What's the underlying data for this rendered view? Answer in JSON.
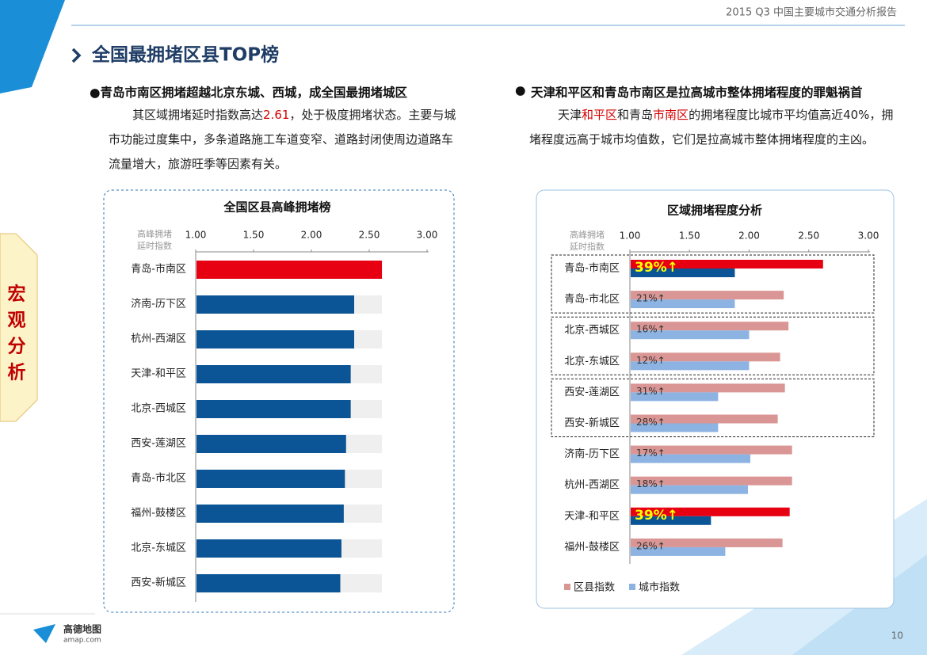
{
  "header": {
    "report_title": "2015 Q3 中国主要城市交通分析报告",
    "page_number": "10"
  },
  "section_title": "全国最拥堵区县TOP榜",
  "side_tab": [
    "宏",
    "观",
    "分",
    "析"
  ],
  "logo": {
    "name": "高德地图",
    "site": "amap.com"
  },
  "left_text": {
    "heading": "●青岛市南区拥堵超越北京东城、西城，成全国最拥堵城区",
    "paragraph": [
      {
        "text": "其区域拥堵延时指数高达"
      },
      {
        "text": "2.61",
        "emphasis": true
      },
      {
        "text": "，处于极度拥堵状态。主要与城市功能过度集中，多条道路施工车道变窄、道路封闭使周边道路车流量增大，旅游旺季等因素有关。"
      }
    ]
  },
  "right_text": {
    "bullet": "●",
    "heading": "天津和平区和青岛市南区是拉高城市整体拥堵程度的罪魁祸首",
    "paragraph": [
      {
        "text": "天津"
      },
      {
        "text": "和平区",
        "emphasis": true
      },
      {
        "text": "和青岛"
      },
      {
        "text": "市南区",
        "emphasis": true
      },
      {
        "text": "的拥堵程度比城市平均值高近40%，拥堵程度远高于城市均值数，它们是拉高城市整体拥堵程度的主凶。"
      }
    ]
  },
  "chart_data": [
    {
      "type": "bar",
      "orientation": "horizontal",
      "title": "全国区县高峰拥堵榜",
      "axis_label": [
        "高峰拥堵",
        "延时指数"
      ],
      "categories": [
        "青岛-市南区",
        "济南-历下区",
        "杭州-西湖区",
        "天津-和平区",
        "北京-西城区",
        "西安-莲湖区",
        "青岛-市北区",
        "福州-鼓楼区",
        "北京-东城区",
        "西安-新城区"
      ],
      "values": [
        2.61,
        2.37,
        2.37,
        2.34,
        2.34,
        2.3,
        2.29,
        2.28,
        2.26,
        2.25
      ],
      "colors": [
        "#e60012",
        "#0b5596",
        "#0b5596",
        "#0b5596",
        "#0b5596",
        "#0b5596",
        "#0b5596",
        "#0b5596",
        "#0b5596",
        "#0b5596"
      ],
      "track_color": "#efefef",
      "xlim": [
        1,
        3
      ],
      "xticks": [
        {
          "value": 1,
          "label": "1.00"
        },
        {
          "value": 1.5,
          "label": "1.50"
        },
        {
          "value": 2,
          "label": "2.00"
        },
        {
          "value": 2.5,
          "label": "2.50"
        },
        {
          "value": 3,
          "label": "3.00"
        }
      ]
    },
    {
      "type": "grouped-bar",
      "orientation": "horizontal",
      "title": "区域拥堵程度分析",
      "axis_label": [
        "高峰拥堵",
        "延时指数"
      ],
      "categories": [
        "青岛-市南区",
        "青岛-市北区",
        "北京-西城区",
        "北京-东城区",
        "西安-莲湖区",
        "西安-新城区",
        "济南-历下区",
        "杭州-西湖区",
        "天津-和平区",
        "福州-鼓楼区"
      ],
      "series": [
        {
          "name": "区县指数",
          "color": "#d99694",
          "values": [
            2.62,
            2.29,
            2.33,
            2.26,
            2.3,
            2.24,
            2.36,
            2.36,
            2.34,
            2.28
          ],
          "point_colors": [
            "#e60012",
            "#d99694",
            "#d99694",
            "#d99694",
            "#d99694",
            "#d99694",
            "#d99694",
            "#d99694",
            "#e60012",
            "#d99694"
          ]
        },
        {
          "name": "城市指数",
          "color": "#8db3e2",
          "values": [
            1.88,
            1.88,
            2.0,
            2.0,
            1.74,
            1.74,
            2.01,
            1.99,
            1.68,
            1.8
          ],
          "point_colors": [
            "#0b5596",
            "#8db3e2",
            "#8db3e2",
            "#8db3e2",
            "#8db3e2",
            "#8db3e2",
            "#8db3e2",
            "#8db3e2",
            "#0b5596",
            "#8db3e2"
          ]
        }
      ],
      "annotations": [
        "39%↑",
        "21%↑",
        "16%↑",
        "12%↑",
        "31%↑",
        "28%↑",
        "17%↑",
        "18%↑",
        "39%↑",
        "26%↑"
      ],
      "xlim": [
        1,
        3
      ],
      "xticks": [
        {
          "value": 1,
          "label": "1.00"
        },
        {
          "value": 1.5,
          "label": "1.50"
        },
        {
          "value": 2,
          "label": "2.00"
        },
        {
          "value": 2.5,
          "label": "2.50"
        },
        {
          "value": 3,
          "label": "3.00"
        }
      ],
      "legend": "bottom-left"
    }
  ]
}
